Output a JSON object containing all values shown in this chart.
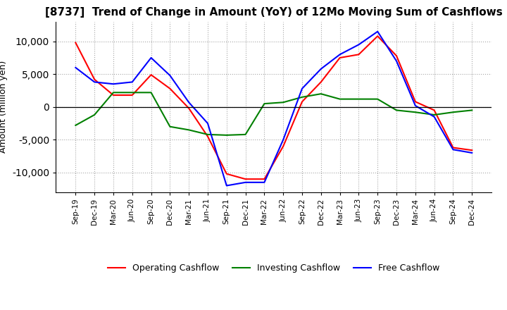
{
  "title": "[8737]  Trend of Change in Amount (YoY) of 12Mo Moving Sum of Cashflows",
  "ylabel": "Amount (million yen)",
  "x_labels": [
    "Sep-19",
    "Dec-19",
    "Mar-20",
    "Jun-20",
    "Sep-20",
    "Dec-20",
    "Mar-21",
    "Jun-21",
    "Sep-21",
    "Dec-21",
    "Mar-22",
    "Jun-22",
    "Sep-22",
    "Dec-22",
    "Mar-23",
    "Jun-23",
    "Sep-23",
    "Dec-23",
    "Mar-24",
    "Jun-24",
    "Sep-24",
    "Dec-24"
  ],
  "operating": [
    9800,
    4200,
    1800,
    1800,
    4900,
    2800,
    -200,
    -4500,
    -10200,
    -11000,
    -11000,
    -6000,
    800,
    3800,
    7500,
    8000,
    10800,
    7800,
    800,
    -500,
    -6200,
    -6600
  ],
  "investing": [
    -2800,
    -1200,
    2200,
    2200,
    2200,
    -3000,
    -3500,
    -4200,
    -4300,
    -4200,
    500,
    700,
    1500,
    2000,
    1200,
    1200,
    1200,
    -500,
    -800,
    -1200,
    -800,
    -500
  ],
  "free": [
    6000,
    3800,
    3500,
    3800,
    7500,
    4800,
    700,
    -2500,
    -12000,
    -11500,
    -11500,
    -5000,
    2800,
    5800,
    8000,
    9500,
    11500,
    7000,
    200,
    -1500,
    -6500,
    -7000
  ],
  "operating_color": "#ff0000",
  "investing_color": "#008000",
  "free_color": "#0000ff",
  "ylim": [
    -13000,
    13000
  ],
  "yticks": [
    -10000,
    -5000,
    0,
    5000,
    10000
  ],
  "title_fontsize": 11,
  "legend_labels": [
    "Operating Cashflow",
    "Investing Cashflow",
    "Free Cashflow"
  ]
}
